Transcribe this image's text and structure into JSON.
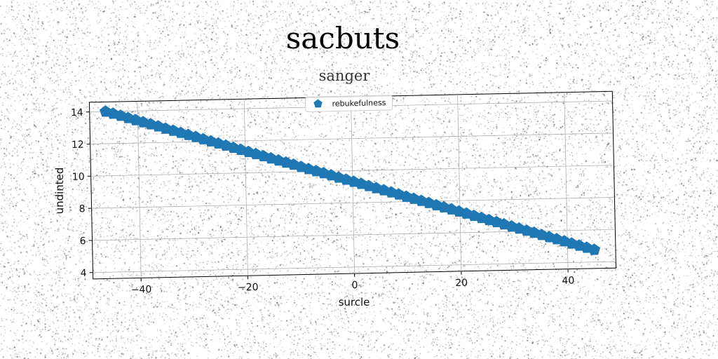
{
  "figure": {
    "title": "sacbuts"
  },
  "chart_data": {
    "type": "scatter",
    "title": "sanger",
    "xlabel": "surcle",
    "ylabel": "undinted",
    "xlim": [
      -49,
      49
    ],
    "ylim": [
      3.6,
      14.6
    ],
    "xticks": [
      -40,
      -20,
      0,
      20,
      40
    ],
    "yticks": [
      4,
      6,
      8,
      10,
      12,
      14
    ],
    "xtick_labels": [
      "−40",
      "−20",
      "0",
      "20",
      "40"
    ],
    "ytick_labels": [
      "4",
      "6",
      "8",
      "10",
      "12",
      "14"
    ],
    "grid": true,
    "legend_position": "top-center",
    "marker": "pentagon",
    "series": [
      {
        "name": "rebukefulness",
        "color": "#1f77b4",
        "x": [
          -46.0,
          -44.6,
          -43.2,
          -41.8,
          -40.4,
          -39.0,
          -37.6,
          -36.2,
          -34.8,
          -33.4,
          -32.0,
          -30.6,
          -29.2,
          -27.8,
          -26.4,
          -25.0,
          -23.6,
          -22.2,
          -20.8,
          -19.4,
          -18.0,
          -16.6,
          -15.2,
          -13.8,
          -12.4,
          -11.0,
          -9.6,
          -8.2,
          -6.8,
          -5.4,
          -4.0,
          -2.6,
          -1.2,
          0.2,
          1.6,
          3.0,
          4.4,
          5.8,
          7.2,
          8.6,
          10.0,
          11.4,
          12.8,
          14.2,
          15.6,
          17.0,
          18.4,
          19.8,
          21.2,
          22.6,
          24.0,
          25.4,
          26.8,
          28.2,
          29.6,
          31.0,
          32.4,
          33.8,
          35.2,
          36.6,
          38.0,
          39.4,
          40.8,
          42.2,
          43.6,
          45.0
        ],
        "y": [
          14.0,
          13.86,
          13.72,
          13.57,
          13.43,
          13.29,
          13.15,
          13.01,
          12.86,
          12.72,
          12.58,
          12.44,
          12.3,
          12.15,
          12.01,
          11.87,
          11.73,
          11.58,
          11.44,
          11.3,
          11.16,
          11.02,
          10.87,
          10.73,
          10.59,
          10.45,
          10.3,
          10.16,
          10.02,
          9.88,
          9.74,
          9.59,
          9.45,
          9.31,
          9.17,
          9.02,
          8.88,
          8.74,
          8.6,
          8.46,
          8.31,
          8.17,
          8.03,
          7.89,
          7.74,
          7.6,
          7.46,
          7.32,
          7.18,
          7.03,
          6.89,
          6.75,
          6.61,
          6.46,
          6.32,
          6.18,
          6.04,
          5.9,
          5.75,
          5.61,
          5.47,
          5.33,
          5.18,
          5.04,
          4.9,
          4.76
        ]
      }
    ]
  }
}
